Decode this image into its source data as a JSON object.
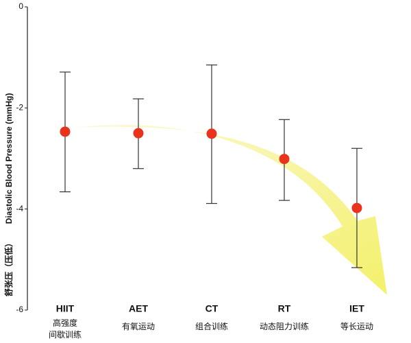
{
  "chart_data": {
    "type": "errorbar",
    "y_label": "Diastolic Blood Pressure (mmHg)",
    "y_label_cn": "舒张压（压低）",
    "categories": [
      "HIIT",
      "AET",
      "CT",
      "RT",
      "IET"
    ],
    "category_subtitles": [
      "高强度间歇训练",
      "有氧运动",
      "组合训练",
      "动态阻力训练",
      "等长运动"
    ],
    "values": [
      -2.47,
      -2.5,
      -2.51,
      -3.01,
      -3.98
    ],
    "lower": [
      -3.66,
      -3.2,
      -3.89,
      -3.83,
      -5.16
    ],
    "upper": [
      -1.29,
      -1.82,
      -1.15,
      -2.23,
      -2.8
    ],
    "color": "#e8341c",
    "ylim": [
      -6,
      0
    ],
    "yticks": [
      0,
      -2,
      -4,
      -6
    ]
  }
}
